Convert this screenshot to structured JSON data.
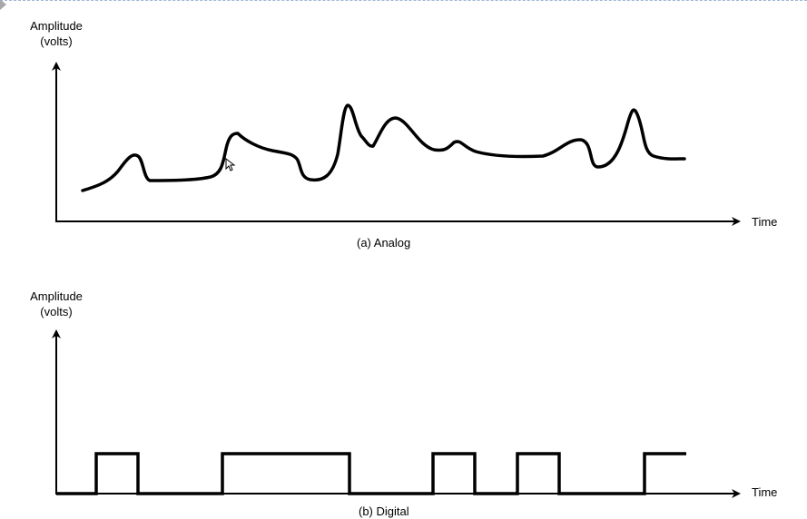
{
  "analog_panel": {
    "y_axis_label_line1": "Amplitude",
    "y_axis_label_line2": "(volts)",
    "x_axis_label": "Time",
    "caption": "(a) Analog"
  },
  "digital_panel": {
    "y_axis_label_line1": "Amplitude",
    "y_axis_label_line2": "(volts)",
    "x_axis_label": "Time",
    "caption": "(b) Digital"
  },
  "colors": {
    "stroke": "#000000",
    "top_border": "#9fb6d6",
    "corner_marker": "#a8a8a8"
  },
  "icons": {
    "corner_marker": "triangle-right-icon",
    "pointer": "mouse-pointer-icon"
  }
}
